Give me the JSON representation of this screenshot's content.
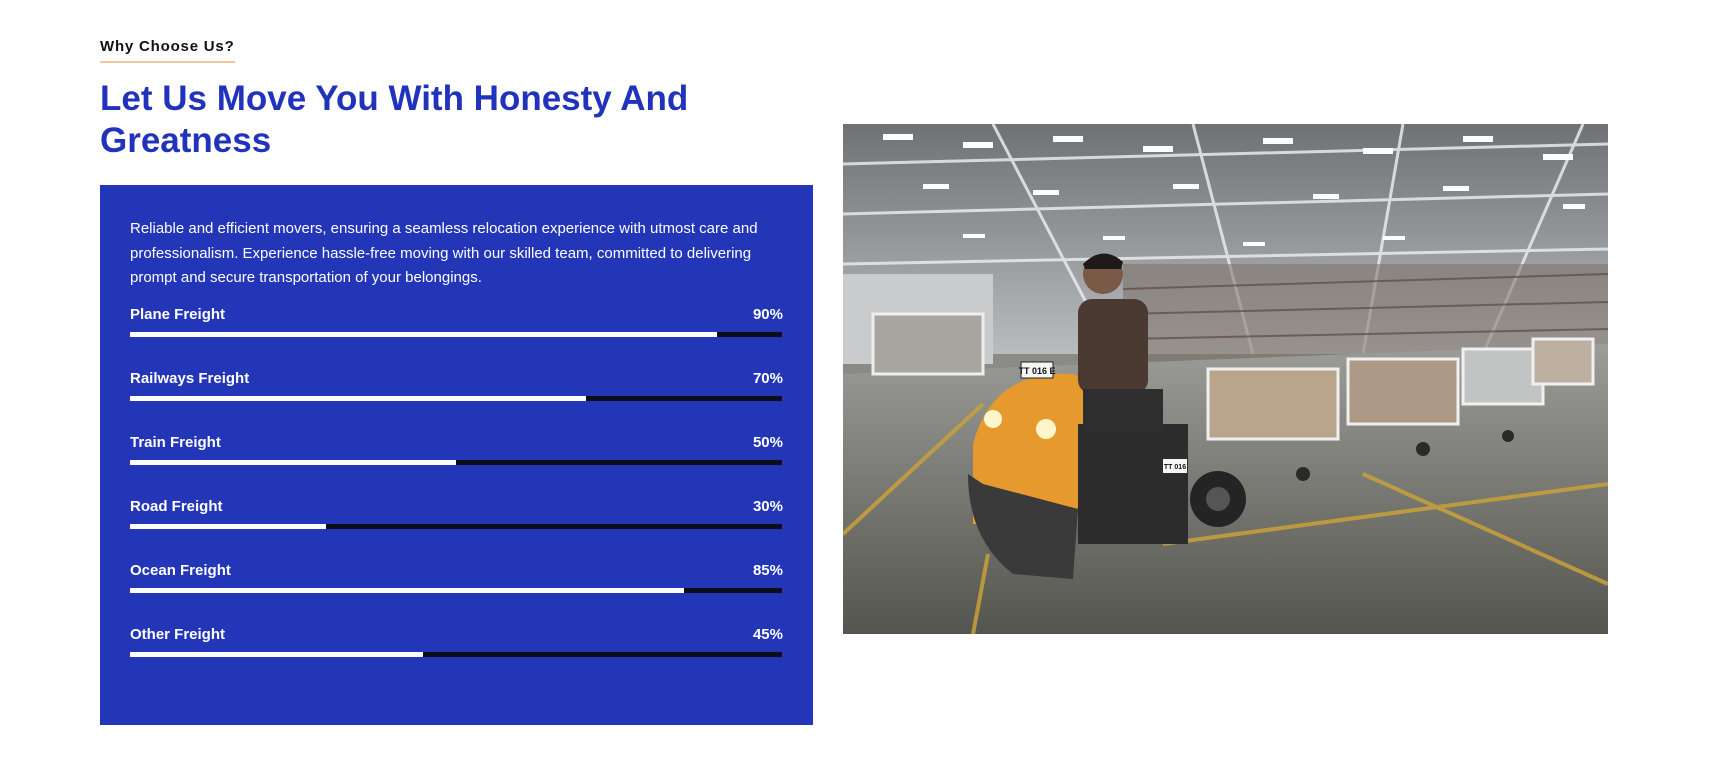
{
  "section": {
    "eyebrow": "Why Choose Us?",
    "title": "Let Us Move You With Honesty And Greatness"
  },
  "panel": {
    "description": "Reliable and efficient movers, ensuring a seamless relocation experience with utmost care and professionalism. Experience hassle-free moving with our skilled team, committed to delivering prompt and secure transportation of your belongings.",
    "skills": [
      {
        "label": "Plane Freight",
        "percent_text": "90%",
        "value": 90
      },
      {
        "label": "Railways Freight",
        "percent_text": "70%",
        "value": 70
      },
      {
        "label": "Train Freight",
        "percent_text": "50%",
        "value": 50
      },
      {
        "label": "Road Freight",
        "percent_text": "30%",
        "value": 30
      },
      {
        "label": "Ocean Freight",
        "percent_text": "85%",
        "value": 85
      },
      {
        "label": "Other Freight",
        "percent_text": "45%",
        "value": 45
      }
    ]
  },
  "photo": {
    "vehicle_plate": "TT 016 E",
    "vehicle_tag": "TT 016"
  },
  "colors": {
    "heading": "#2233bb",
    "panel_bg": "#2336b7",
    "bar_fill": "#ffffff",
    "bar_track": "#0d0d1a",
    "eyebrow_underline": "#f3c99a",
    "vehicle": "#e69a2e"
  }
}
